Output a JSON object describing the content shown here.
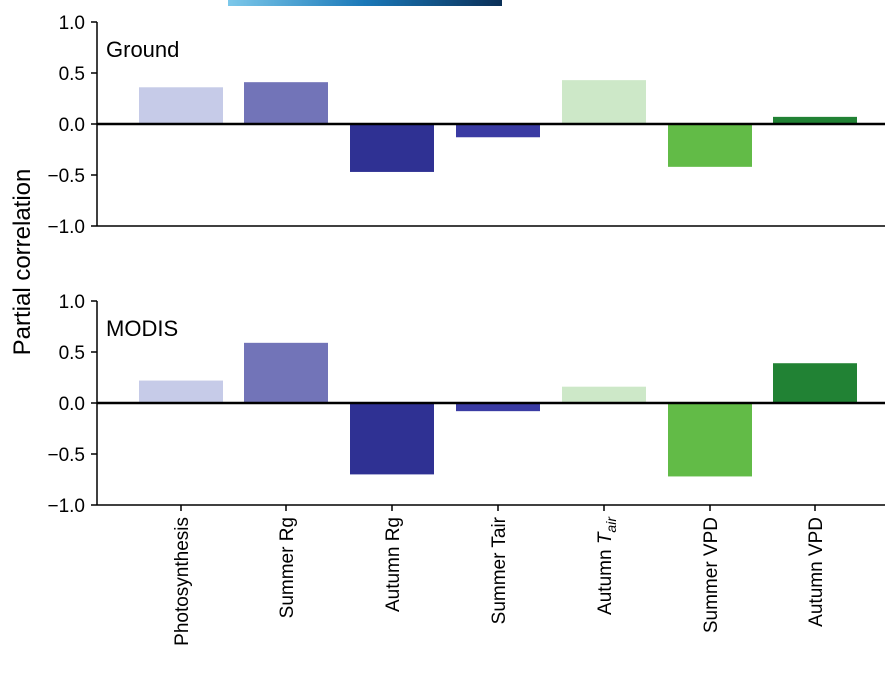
{
  "colors": {
    "bars": [
      "#c6cbe8",
      "#7274b8",
      "#2f3193",
      "#3a3ba3",
      "#cde8c8",
      "#62bb47",
      "#218234"
    ],
    "top_strip": [
      "#7cc8ea",
      "#1a78b8",
      "#0a2f57"
    ]
  },
  "chart_data": [
    {
      "type": "bar",
      "title": "Ground",
      "categories": [
        "Photosynthesis",
        "Summer Rg",
        "Autumn Rg",
        "Summer Tair",
        "Autumn Tair",
        "Summer VPD",
        "Autumn VPD"
      ],
      "values": [
        0.36,
        0.41,
        -0.47,
        -0.13,
        0.43,
        -0.42,
        0.07
      ],
      "ylabel": "Partial correlation",
      "ylim": [
        -1.0,
        1.0
      ],
      "yticks": [
        "1.0",
        "0.5",
        "0.0",
        "−0.5",
        "−1.0"
      ],
      "grid": false
    },
    {
      "type": "bar",
      "title": "MODIS",
      "categories": [
        "Photosynthesis",
        "Summer Rg",
        "Autumn Rg",
        "Summer Tair",
        "Autumn Tair",
        "Summer VPD",
        "Autumn VPD"
      ],
      "values": [
        0.22,
        0.59,
        -0.7,
        -0.08,
        0.16,
        -0.72,
        0.39
      ],
      "ylabel": "Partial correlation",
      "ylim": [
        -1.0,
        1.0
      ],
      "yticks": [
        "1.0",
        "0.5",
        "0.0",
        "−0.5",
        "−1.0"
      ],
      "grid": false
    }
  ],
  "axis": {
    "ylabel": "Partial correlation",
    "xtick_labels": [
      "Photosynthesis",
      "Summer Rg",
      "Autumn Rg",
      "Summer Tair",
      "Autumn",
      "Summer VPD",
      "Autumn VPD"
    ],
    "autumn_tair_main": "T",
    "autumn_tair_sub": "air"
  }
}
